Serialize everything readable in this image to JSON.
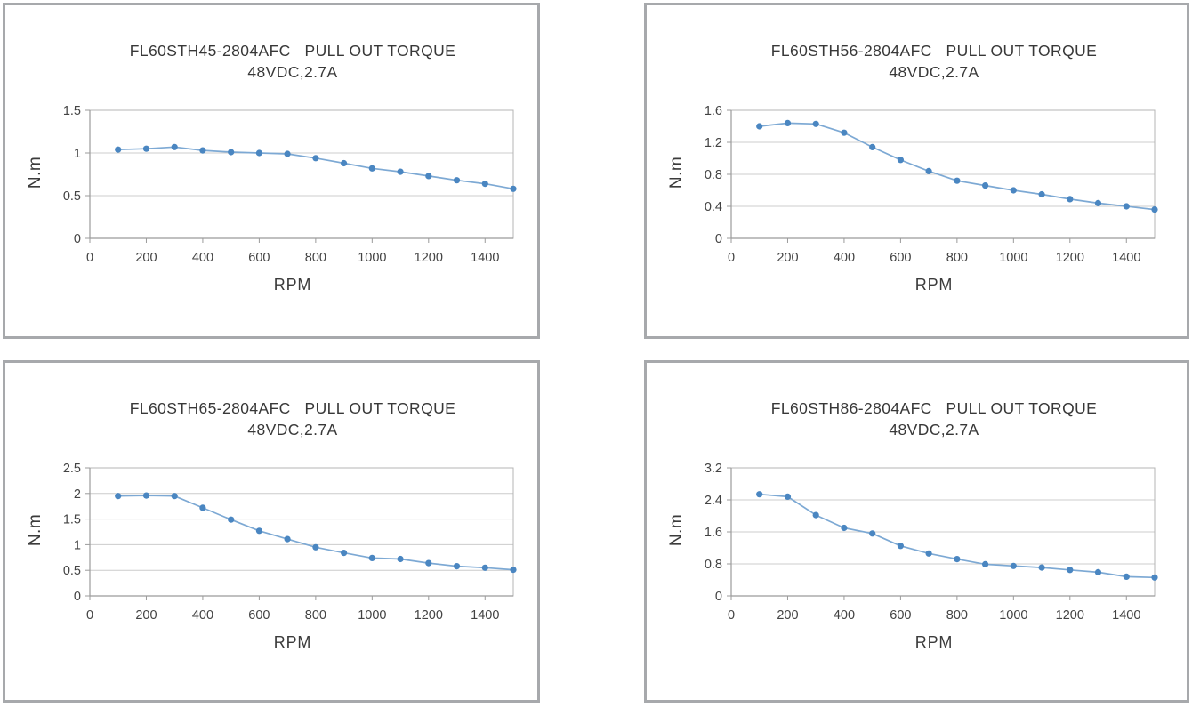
{
  "page": {
    "ylabel": "N.m",
    "xlabel": "RPM"
  },
  "colors": {
    "marker": "#4a86c1",
    "line": "#7da9d4",
    "grid": "#cccccc",
    "plot_border": "#b4b4b4",
    "axis": "#9b9b9b",
    "panel_border": "#a7a9ac",
    "text": "#3b3b3b"
  },
  "chart_data": [
    {
      "type": "line",
      "title_line1": "FL60STH45-2804AFC   PULL OUT TORQUE",
      "title_line2": "48VDC,2.7A",
      "xlabel": "RPM",
      "ylabel": "N.m",
      "xlim": [
        0,
        1500
      ],
      "ylim": [
        0,
        1.5
      ],
      "grid": true,
      "legend": "none",
      "x": [
        100,
        200,
        300,
        400,
        500,
        600,
        700,
        800,
        900,
        1000,
        1100,
        1200,
        1300,
        1400,
        1500
      ],
      "values": [
        1.04,
        1.05,
        1.07,
        1.03,
        1.01,
        1.0,
        0.99,
        0.94,
        0.88,
        0.82,
        0.78,
        0.73,
        0.68,
        0.64,
        0.58
      ],
      "yticks": [
        {
          "value": 0,
          "label": "0"
        },
        {
          "value": 0.5,
          "label": "0.5"
        },
        {
          "value": 1,
          "label": "1"
        },
        {
          "value": 1.5,
          "label": "1.5"
        }
      ],
      "xticks": [
        {
          "value": 0,
          "label": "0"
        },
        {
          "value": 200,
          "label": "200"
        },
        {
          "value": 400,
          "label": "400"
        },
        {
          "value": 600,
          "label": "600"
        },
        {
          "value": 800,
          "label": "800"
        },
        {
          "value": 1000,
          "label": "1000"
        },
        {
          "value": 1200,
          "label": "1200"
        },
        {
          "value": 1400,
          "label": "1400"
        }
      ]
    },
    {
      "type": "line",
      "title_line1": "FL60STH56-2804AFC   PULL OUT TORQUE",
      "title_line2": "48VDC,2.7A",
      "xlabel": "RPM",
      "ylabel": "N.m",
      "xlim": [
        0,
        1500
      ],
      "ylim": [
        0,
        1.6
      ],
      "grid": true,
      "legend": "none",
      "x": [
        100,
        200,
        300,
        400,
        500,
        600,
        700,
        800,
        900,
        1000,
        1100,
        1200,
        1300,
        1400,
        1500
      ],
      "values": [
        1.4,
        1.44,
        1.43,
        1.32,
        1.14,
        0.98,
        0.84,
        0.72,
        0.66,
        0.6,
        0.55,
        0.49,
        0.44,
        0.4,
        0.36
      ],
      "yticks": [
        {
          "value": 0,
          "label": "0"
        },
        {
          "value": 0.4,
          "label": "0.4"
        },
        {
          "value": 0.8,
          "label": "0.8"
        },
        {
          "value": 1.2,
          "label": "1.2"
        },
        {
          "value": 1.6,
          "label": "1.6"
        }
      ],
      "xticks": [
        {
          "value": 0,
          "label": "0"
        },
        {
          "value": 200,
          "label": "200"
        },
        {
          "value": 400,
          "label": "400"
        },
        {
          "value": 600,
          "label": "600"
        },
        {
          "value": 800,
          "label": "800"
        },
        {
          "value": 1000,
          "label": "1000"
        },
        {
          "value": 1200,
          "label": "1200"
        },
        {
          "value": 1400,
          "label": "1400"
        }
      ]
    },
    {
      "type": "line",
      "title_line1": "FL60STH65-2804AFC   PULL OUT TORQUE",
      "title_line2": "48VDC,2.7A",
      "xlabel": "RPM",
      "ylabel": "N.m",
      "xlim": [
        0,
        1500
      ],
      "ylim": [
        0,
        2.5
      ],
      "grid": true,
      "legend": "none",
      "x": [
        100,
        200,
        300,
        400,
        500,
        600,
        700,
        800,
        900,
        1000,
        1100,
        1200,
        1300,
        1400,
        1500
      ],
      "values": [
        1.95,
        1.96,
        1.95,
        1.72,
        1.49,
        1.27,
        1.11,
        0.95,
        0.84,
        0.74,
        0.72,
        0.64,
        0.58,
        0.55,
        0.51
      ],
      "yticks": [
        {
          "value": 0,
          "label": "0"
        },
        {
          "value": 0.5,
          "label": "0.5"
        },
        {
          "value": 1,
          "label": "1"
        },
        {
          "value": 1.5,
          "label": "1.5"
        },
        {
          "value": 2,
          "label": "2"
        },
        {
          "value": 2.5,
          "label": "2.5"
        }
      ],
      "xticks": [
        {
          "value": 0,
          "label": "0"
        },
        {
          "value": 200,
          "label": "200"
        },
        {
          "value": 400,
          "label": "400"
        },
        {
          "value": 600,
          "label": "600"
        },
        {
          "value": 800,
          "label": "800"
        },
        {
          "value": 1000,
          "label": "1000"
        },
        {
          "value": 1200,
          "label": "1200"
        },
        {
          "value": 1400,
          "label": "1400"
        }
      ]
    },
    {
      "type": "line",
      "title_line1": "FL60STH86-2804AFC   PULL OUT TORQUE",
      "title_line2": "48VDC,2.7A",
      "xlabel": "RPM",
      "ylabel": "N.m",
      "xlim": [
        0,
        1500
      ],
      "ylim": [
        0,
        3.2
      ],
      "grid": true,
      "legend": "none",
      "x": [
        100,
        200,
        300,
        400,
        500,
        600,
        700,
        800,
        900,
        1000,
        1100,
        1200,
        1300,
        1400,
        1500
      ],
      "values": [
        2.54,
        2.48,
        2.02,
        1.7,
        1.56,
        1.25,
        1.06,
        0.92,
        0.79,
        0.75,
        0.71,
        0.65,
        0.59,
        0.48,
        0.46
      ],
      "yticks": [
        {
          "value": 0,
          "label": "0"
        },
        {
          "value": 0.8,
          "label": "0.8"
        },
        {
          "value": 1.6,
          "label": "1.6"
        },
        {
          "value": 2.4,
          "label": "2.4"
        },
        {
          "value": 3.2,
          "label": "3.2"
        }
      ],
      "xticks": [
        {
          "value": 0,
          "label": "0"
        },
        {
          "value": 200,
          "label": "200"
        },
        {
          "value": 400,
          "label": "400"
        },
        {
          "value": 600,
          "label": "600"
        },
        {
          "value": 800,
          "label": "800"
        },
        {
          "value": 1000,
          "label": "1000"
        },
        {
          "value": 1200,
          "label": "1200"
        },
        {
          "value": 1400,
          "label": "1400"
        }
      ]
    }
  ]
}
